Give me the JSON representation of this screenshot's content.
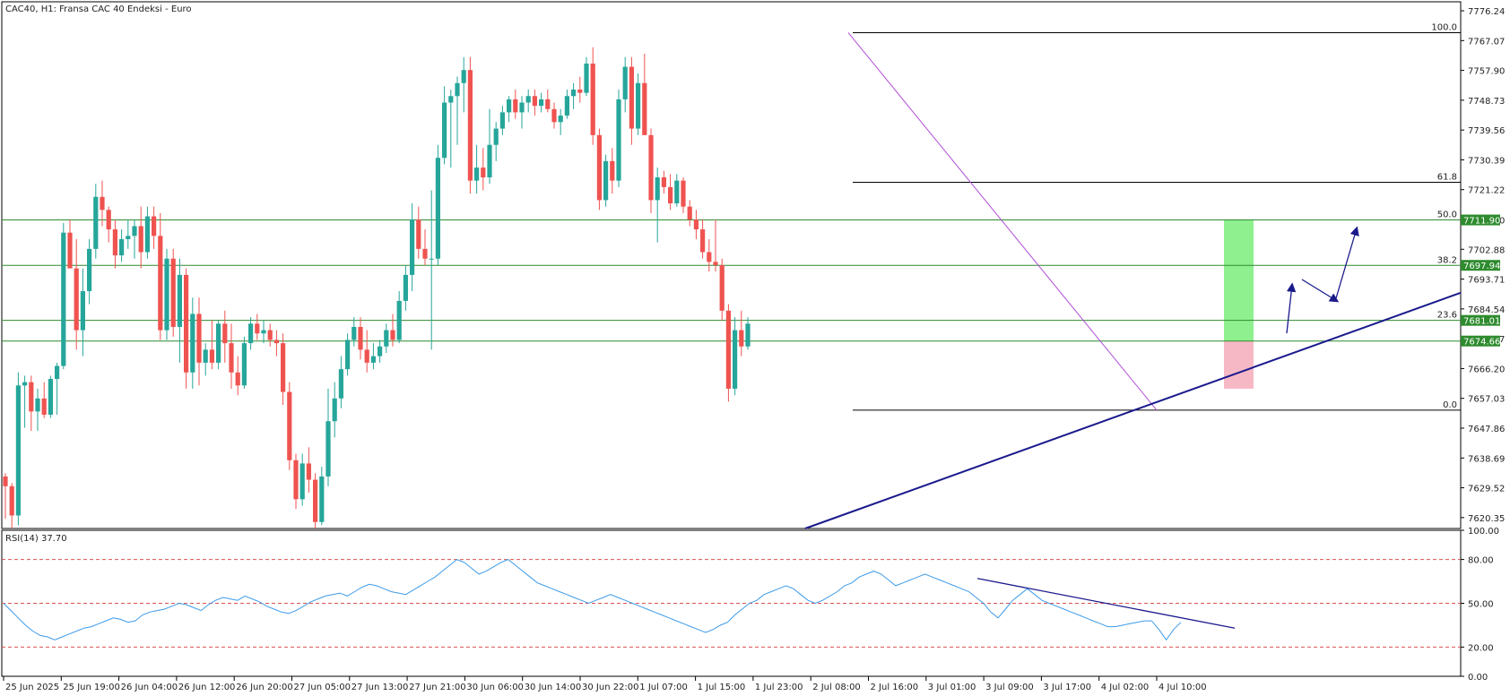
{
  "chart_title": "CAC40, H1:  Fransa CAC 40 Endeksi - Euro",
  "rsi_title": "RSI(14) 37.70",
  "colors": {
    "up": "#26a69a",
    "down": "#ef5350",
    "support": "#2e8b2e",
    "trend": "#1a1a8c",
    "fib": "#000000",
    "diag": "#b04fd6",
    "rsi_line": "#3d9be9",
    "rsi_level": "#d9534f",
    "target_zone": "#8ef08e",
    "stop_zone": "#f7b8c6"
  },
  "price_axis": [
    "7776.24",
    "7767.07",
    "7757.90",
    "7748.73",
    "7739.56",
    "7730.39",
    "7721.22",
    "7711.90",
    "7702.88",
    "7693.71",
    "7684.54",
    "7675.37",
    "7666.20",
    "7657.03",
    "7647.86",
    "7638.69",
    "7629.52",
    "7620.35"
  ],
  "rsi_axis": [
    "100.00",
    "80.00",
    "50.00",
    "20.00",
    "0.00"
  ],
  "time_axis": [
    "25 Jun 2025",
    "25 Jun 19:00",
    "26 Jun 04:00",
    "26 Jun 12:00",
    "26 Jun 20:00",
    "27 Jun 05:00",
    "27 Jun 13:00",
    "27 Jun 21:00",
    "30 Jun 06:00",
    "30 Jun 14:00",
    "30 Jun 22:00",
    "1 Jul 07:00",
    "1 Jul 15:00",
    "1 Jul 23:00",
    "2 Jul 08:00",
    "2 Jul 16:00",
    "3 Jul 01:00",
    "3 Jul 09:00",
    "3 Jul 17:00",
    "4 Jul 02:00",
    "4 Jul 10:00"
  ],
  "price_tags": [
    {
      "value": 7711.9,
      "text": "7711.90"
    },
    {
      "value": 7697.94,
      "text": "7697.94"
    },
    {
      "value": 7681.01,
      "text": "7681.01"
    },
    {
      "value": 7674.66,
      "text": "7674.66"
    }
  ],
  "fib_levels": [
    {
      "label": "100.0",
      "price": 7769.5
    },
    {
      "label": "61.8",
      "price": 7723.5
    },
    {
      "label": "50.0",
      "price": 7711.9
    },
    {
      "label": "38.2",
      "price": 7697.9
    },
    {
      "label": "23.6",
      "price": 7681.0
    },
    {
      "label": "0.0",
      "price": 7653.4
    }
  ],
  "chart_data": [
    {
      "type": "candlestick",
      "symbol": "CAC40",
      "timeframe": "H1",
      "description": "Fransa CAC 40 Endeksi - Euro",
      "ylim": [
        7617,
        7779
      ],
      "horizontal_levels": [
        7711.9,
        7697.94,
        7681.01,
        7674.66
      ],
      "candles": [
        {
          "o": 7633,
          "h": 7634,
          "l": 7620,
          "c": 7630
        },
        {
          "o": 7630,
          "h": 7631,
          "l": 7617,
          "c": 7621
        },
        {
          "o": 7621,
          "h": 7665,
          "l": 7618,
          "c": 7661
        },
        {
          "o": 7661,
          "h": 7664,
          "l": 7648,
          "c": 7662
        },
        {
          "o": 7662,
          "h": 7664,
          "l": 7647,
          "c": 7653
        },
        {
          "o": 7653,
          "h": 7660,
          "l": 7647,
          "c": 7657
        },
        {
          "o": 7657,
          "h": 7662,
          "l": 7651,
          "c": 7652
        },
        {
          "o": 7652,
          "h": 7664,
          "l": 7651,
          "c": 7663
        },
        {
          "o": 7663,
          "h": 7668,
          "l": 7652,
          "c": 7667
        },
        {
          "o": 7667,
          "h": 7711,
          "l": 7666,
          "c": 7708
        },
        {
          "o": 7708,
          "h": 7712,
          "l": 7698,
          "c": 7697
        },
        {
          "o": 7697,
          "h": 7706,
          "l": 7672,
          "c": 7678
        },
        {
          "o": 7678,
          "h": 7697,
          "l": 7670,
          "c": 7690
        },
        {
          "o": 7690,
          "h": 7706,
          "l": 7686,
          "c": 7703
        },
        {
          "o": 7703,
          "h": 7723,
          "l": 7700,
          "c": 7719
        },
        {
          "o": 7719,
          "h": 7724,
          "l": 7710,
          "c": 7715
        },
        {
          "o": 7715,
          "h": 7716,
          "l": 7705,
          "c": 7709
        },
        {
          "o": 7709,
          "h": 7712,
          "l": 7697,
          "c": 7701
        },
        {
          "o": 7701,
          "h": 7709,
          "l": 7699,
          "c": 7706
        },
        {
          "o": 7706,
          "h": 7712,
          "l": 7703,
          "c": 7707
        },
        {
          "o": 7707,
          "h": 7712,
          "l": 7700,
          "c": 7710
        },
        {
          "o": 7710,
          "h": 7716,
          "l": 7697,
          "c": 7702
        },
        {
          "o": 7702,
          "h": 7716,
          "l": 7700,
          "c": 7713
        },
        {
          "o": 7713,
          "h": 7716,
          "l": 7703,
          "c": 7707
        },
        {
          "o": 7707,
          "h": 7714,
          "l": 7675,
          "c": 7678
        },
        {
          "o": 7678,
          "h": 7703,
          "l": 7675,
          "c": 7700
        },
        {
          "o": 7700,
          "h": 7703,
          "l": 7676,
          "c": 7679
        },
        {
          "o": 7679,
          "h": 7700,
          "l": 7668,
          "c": 7695
        },
        {
          "o": 7695,
          "h": 7697,
          "l": 7660,
          "c": 7665
        },
        {
          "o": 7665,
          "h": 7688,
          "l": 7660,
          "c": 7683
        },
        {
          "o": 7683,
          "h": 7688,
          "l": 7661,
          "c": 7668
        },
        {
          "o": 7668,
          "h": 7674,
          "l": 7664,
          "c": 7672
        },
        {
          "o": 7672,
          "h": 7681,
          "l": 7666,
          "c": 7668
        },
        {
          "o": 7668,
          "h": 7681,
          "l": 7666,
          "c": 7680
        },
        {
          "o": 7680,
          "h": 7684,
          "l": 7668,
          "c": 7674
        },
        {
          "o": 7674,
          "h": 7680,
          "l": 7660,
          "c": 7665
        },
        {
          "o": 7665,
          "h": 7670,
          "l": 7658,
          "c": 7661
        },
        {
          "o": 7661,
          "h": 7676,
          "l": 7660,
          "c": 7674
        },
        {
          "o": 7674,
          "h": 7682,
          "l": 7672,
          "c": 7680
        },
        {
          "o": 7680,
          "h": 7683,
          "l": 7675,
          "c": 7677
        },
        {
          "o": 7677,
          "h": 7681,
          "l": 7674,
          "c": 7678
        },
        {
          "o": 7678,
          "h": 7680,
          "l": 7673,
          "c": 7675
        },
        {
          "o": 7675,
          "h": 7678,
          "l": 7670,
          "c": 7674
        },
        {
          "o": 7674,
          "h": 7677,
          "l": 7655,
          "c": 7659
        },
        {
          "o": 7659,
          "h": 7662,
          "l": 7635,
          "c": 7638
        },
        {
          "o": 7638,
          "h": 7640,
          "l": 7623,
          "c": 7626
        },
        {
          "o": 7626,
          "h": 7640,
          "l": 7624,
          "c": 7637
        },
        {
          "o": 7637,
          "h": 7642,
          "l": 7628,
          "c": 7632
        },
        {
          "o": 7632,
          "h": 7634,
          "l": 7617,
          "c": 7619
        },
        {
          "o": 7619,
          "h": 7636,
          "l": 7618,
          "c": 7633
        },
        {
          "o": 7633,
          "h": 7660,
          "l": 7630,
          "c": 7650
        },
        {
          "o": 7650,
          "h": 7662,
          "l": 7645,
          "c": 7657
        },
        {
          "o": 7657,
          "h": 7670,
          "l": 7654,
          "c": 7666
        },
        {
          "o": 7666,
          "h": 7677,
          "l": 7664,
          "c": 7675
        },
        {
          "o": 7675,
          "h": 7682,
          "l": 7673,
          "c": 7679
        },
        {
          "o": 7679,
          "h": 7682,
          "l": 7669,
          "c": 7672
        },
        {
          "o": 7672,
          "h": 7678,
          "l": 7665,
          "c": 7668
        },
        {
          "o": 7668,
          "h": 7674,
          "l": 7666,
          "c": 7670
        },
        {
          "o": 7670,
          "h": 7675,
          "l": 7668,
          "c": 7673
        },
        {
          "o": 7673,
          "h": 7680,
          "l": 7671,
          "c": 7678
        },
        {
          "o": 7678,
          "h": 7683,
          "l": 7673,
          "c": 7675
        },
        {
          "o": 7675,
          "h": 7690,
          "l": 7674,
          "c": 7687
        },
        {
          "o": 7687,
          "h": 7698,
          "l": 7684,
          "c": 7695
        },
        {
          "o": 7695,
          "h": 7717,
          "l": 7690,
          "c": 7712
        },
        {
          "o": 7712,
          "h": 7716,
          "l": 7700,
          "c": 7703
        },
        {
          "o": 7703,
          "h": 7709,
          "l": 7698,
          "c": 7700
        },
        {
          "o": 7700,
          "h": 7721,
          "l": 7672,
          "c": 7700
        },
        {
          "o": 7700,
          "h": 7735,
          "l": 7698,
          "c": 7731
        },
        {
          "o": 7731,
          "h": 7753,
          "l": 7729,
          "c": 7748
        },
        {
          "o": 7748,
          "h": 7752,
          "l": 7728,
          "c": 7750
        },
        {
          "o": 7750,
          "h": 7756,
          "l": 7735,
          "c": 7754
        },
        {
          "o": 7754,
          "h": 7762,
          "l": 7745,
          "c": 7758
        },
        {
          "o": 7758,
          "h": 7762,
          "l": 7720,
          "c": 7724
        },
        {
          "o": 7724,
          "h": 7735,
          "l": 7720,
          "c": 7728
        },
        {
          "o": 7728,
          "h": 7734,
          "l": 7721,
          "c": 7725
        },
        {
          "o": 7725,
          "h": 7746,
          "l": 7723,
          "c": 7735
        },
        {
          "o": 7735,
          "h": 7742,
          "l": 7730,
          "c": 7740
        },
        {
          "o": 7740,
          "h": 7747,
          "l": 7738,
          "c": 7745
        },
        {
          "o": 7745,
          "h": 7750,
          "l": 7742,
          "c": 7749
        },
        {
          "o": 7749,
          "h": 7752,
          "l": 7743,
          "c": 7745
        },
        {
          "o": 7745,
          "h": 7750,
          "l": 7740,
          "c": 7748
        },
        {
          "o": 7748,
          "h": 7752,
          "l": 7745,
          "c": 7750
        },
        {
          "o": 7750,
          "h": 7752,
          "l": 7744,
          "c": 7747
        },
        {
          "o": 7747,
          "h": 7751,
          "l": 7745,
          "c": 7749
        },
        {
          "o": 7749,
          "h": 7752,
          "l": 7745,
          "c": 7746
        },
        {
          "o": 7746,
          "h": 7748,
          "l": 7740,
          "c": 7742
        },
        {
          "o": 7742,
          "h": 7746,
          "l": 7738,
          "c": 7744
        },
        {
          "o": 7744,
          "h": 7752,
          "l": 7743,
          "c": 7750
        },
        {
          "o": 7750,
          "h": 7754,
          "l": 7746,
          "c": 7752
        },
        {
          "o": 7752,
          "h": 7756,
          "l": 7748,
          "c": 7751
        },
        {
          "o": 7751,
          "h": 7762,
          "l": 7750,
          "c": 7760
        },
        {
          "o": 7760,
          "h": 7765,
          "l": 7735,
          "c": 7738
        },
        {
          "o": 7738,
          "h": 7740,
          "l": 7715,
          "c": 7718
        },
        {
          "o": 7718,
          "h": 7732,
          "l": 7716,
          "c": 7730
        },
        {
          "o": 7730,
          "h": 7734,
          "l": 7720,
          "c": 7724
        },
        {
          "o": 7724,
          "h": 7752,
          "l": 7722,
          "c": 7749
        },
        {
          "o": 7749,
          "h": 7762,
          "l": 7745,
          "c": 7759
        },
        {
          "o": 7759,
          "h": 7762,
          "l": 7735,
          "c": 7740
        },
        {
          "o": 7740,
          "h": 7757,
          "l": 7738,
          "c": 7754
        },
        {
          "o": 7754,
          "h": 7763,
          "l": 7738,
          "c": 7738
        },
        {
          "o": 7738,
          "h": 7740,
          "l": 7714,
          "c": 7718
        },
        {
          "o": 7718,
          "h": 7728,
          "l": 7705,
          "c": 7725
        },
        {
          "o": 7725,
          "h": 7727,
          "l": 7720,
          "c": 7722
        },
        {
          "o": 7722,
          "h": 7726,
          "l": 7715,
          "c": 7717
        },
        {
          "o": 7717,
          "h": 7726,
          "l": 7716,
          "c": 7724
        },
        {
          "o": 7724,
          "h": 7725,
          "l": 7714,
          "c": 7716
        },
        {
          "o": 7716,
          "h": 7718,
          "l": 7710,
          "c": 7712
        },
        {
          "o": 7712,
          "h": 7715,
          "l": 7706,
          "c": 7709
        },
        {
          "o": 7709,
          "h": 7712,
          "l": 7700,
          "c": 7702
        },
        {
          "o": 7702,
          "h": 7706,
          "l": 7696,
          "c": 7699
        },
        {
          "o": 7699,
          "h": 7712,
          "l": 7696,
          "c": 7698
        },
        {
          "o": 7698,
          "h": 7700,
          "l": 7681,
          "c": 7684
        },
        {
          "o": 7684,
          "h": 7686,
          "l": 7656,
          "c": 7660
        },
        {
          "o": 7660,
          "h": 7682,
          "l": 7658,
          "c": 7678
        },
        {
          "o": 7678,
          "h": 7684,
          "l": 7670,
          "c": 7673
        },
        {
          "o": 7673,
          "h": 7682,
          "l": 7672,
          "c": 7680
        }
      ]
    },
    {
      "type": "line",
      "indicator": "RSI(14)",
      "last_value": 37.7,
      "ylim": [
        0,
        100
      ],
      "levels": [
        80,
        50,
        20
      ],
      "values": [
        50,
        45,
        40,
        35,
        31,
        28,
        27,
        25,
        27,
        29,
        31,
        33,
        34,
        36,
        38,
        40,
        39,
        37,
        38,
        42,
        44,
        45,
        46,
        48,
        50,
        49,
        47,
        45,
        49,
        52,
        54,
        53,
        52,
        55,
        53,
        51,
        48,
        46,
        44,
        43,
        45,
        48,
        51,
        53,
        55,
        56,
        57,
        55,
        58,
        61,
        63,
        62,
        60,
        58,
        57,
        56,
        59,
        62,
        65,
        68,
        72,
        76,
        80,
        78,
        74,
        70,
        72,
        75,
        78,
        80,
        76,
        72,
        68,
        64,
        62,
        60,
        58,
        56,
        54,
        52,
        50,
        52,
        54,
        56,
        54,
        52,
        50,
        48,
        46,
        44,
        42,
        40,
        38,
        36,
        34,
        32,
        30,
        32,
        35,
        37,
        42,
        46,
        50,
        52,
        56,
        58,
        60,
        62,
        60,
        56,
        52,
        50,
        52,
        55,
        58,
        62,
        64,
        68,
        70,
        72,
        70,
        66,
        62,
        64,
        66,
        68,
        70,
        68,
        66,
        64,
        62,
        60,
        58,
        54,
        50,
        44,
        40,
        46,
        52,
        56,
        60,
        56,
        52,
        50,
        48,
        46,
        44,
        42,
        40,
        38,
        36,
        34,
        34,
        35,
        36,
        37,
        38,
        38,
        32,
        25,
        32,
        37
      ]
    }
  ],
  "diagonal_from_price": 7769.5,
  "diagonal_to_price": 7653.4,
  "rsi_trendline": {
    "from": 67,
    "to": 33
  },
  "target_zone": {
    "top": 7711.9,
    "bottom": 7674.66
  },
  "stop_zone": {
    "top": 7674.66,
    "bottom": 7660
  }
}
